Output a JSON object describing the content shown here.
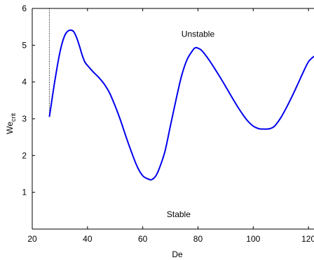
{
  "chart_data": {
    "type": "line",
    "title": "",
    "xlabel": "De",
    "ylabel": {
      "main": "We",
      "subscript": "crit"
    },
    "xlim": [
      20,
      122
    ],
    "ylim": [
      0,
      6
    ],
    "xticks": [
      20,
      40,
      60,
      80,
      100,
      120
    ],
    "yticks": [
      0,
      1,
      2,
      3,
      4,
      5,
      6
    ],
    "grid": false,
    "legend": "none",
    "line_color": "#0000ee",
    "series": [
      {
        "x": [
          26.2,
          27,
          28,
          29,
          30,
          31,
          32,
          33,
          34,
          35,
          36,
          37,
          38,
          39,
          40,
          42,
          44,
          46,
          48,
          50,
          52,
          54,
          56,
          58,
          60,
          62,
          63,
          64,
          65,
          66,
          68,
          70,
          72,
          74,
          76,
          78,
          79,
          80,
          81,
          82,
          84,
          86,
          88,
          90,
          92,
          94,
          96,
          98,
          100,
          102,
          104,
          105,
          106,
          107,
          108,
          110,
          112,
          114,
          116,
          118,
          120,
          122
        ],
        "y": [
          3.05,
          3.45,
          3.95,
          4.4,
          4.8,
          5.1,
          5.3,
          5.39,
          5.41,
          5.37,
          5.22,
          5.0,
          4.75,
          4.55,
          4.45,
          4.28,
          4.13,
          3.95,
          3.7,
          3.35,
          2.95,
          2.5,
          2.08,
          1.7,
          1.45,
          1.36,
          1.34,
          1.38,
          1.48,
          1.65,
          2.1,
          2.8,
          3.5,
          4.15,
          4.6,
          4.85,
          4.93,
          4.92,
          4.88,
          4.8,
          4.6,
          4.37,
          4.13,
          3.88,
          3.62,
          3.37,
          3.14,
          2.94,
          2.8,
          2.73,
          2.72,
          2.72,
          2.73,
          2.76,
          2.82,
          3.03,
          3.3,
          3.6,
          3.92,
          4.25,
          4.55,
          4.7
        ]
      }
    ],
    "vertical_marker_x": 26.2,
    "annotations": [
      {
        "text": "Unstable",
        "x": 80,
        "y": 5.3
      },
      {
        "text": "Stable",
        "x": 73,
        "y": 0.4
      }
    ]
  }
}
